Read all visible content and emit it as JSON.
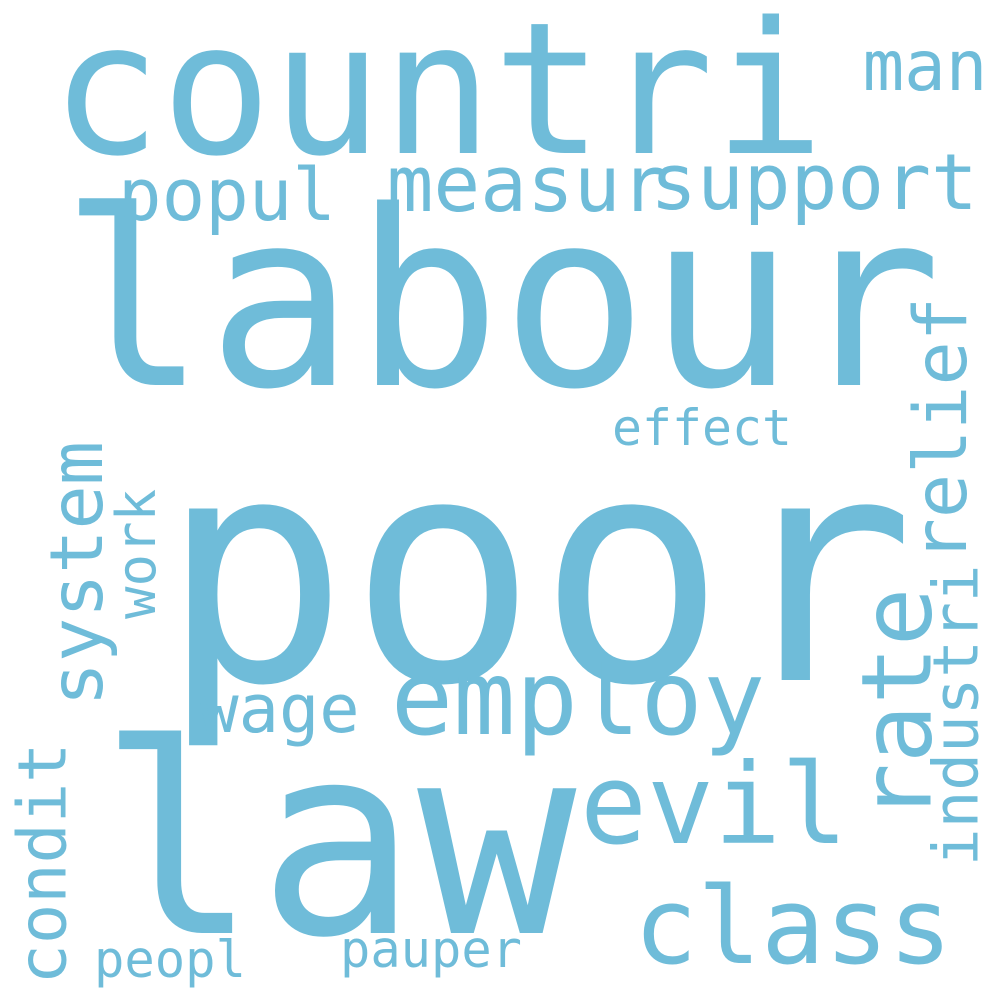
{
  "colors": {
    "background": "#ffffff",
    "word": "#6fbcd9"
  },
  "words": {
    "countri": "countri",
    "labour": "labour",
    "poor": "poor",
    "law": "law",
    "employ": "employ",
    "measur": "measur",
    "support": "support",
    "popul": "popul",
    "man": "man",
    "relief": "relief",
    "effect": "effect",
    "rate": "rate",
    "industri": "industri",
    "system": "system",
    "work": "work",
    "wage": "wage",
    "evil": "evil",
    "class": "class",
    "condit": "condit",
    "pauper": "pauper",
    "peopl": "peopl"
  }
}
